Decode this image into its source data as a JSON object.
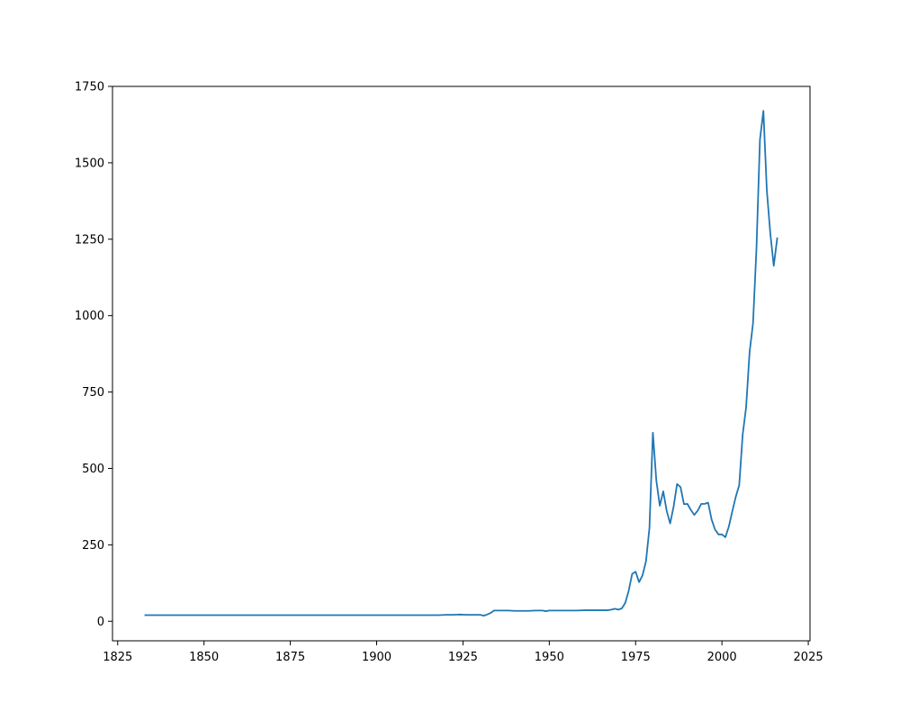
{
  "chart_data": {
    "type": "line",
    "title": "",
    "xlabel": "",
    "ylabel": "",
    "xlim": [
      1823.5,
      2025.5
    ],
    "ylim": [
      -64,
      1750
    ],
    "xticks": [
      1825,
      1850,
      1875,
      1900,
      1925,
      1950,
      1975,
      2000,
      2025
    ],
    "yticks": [
      0,
      250,
      500,
      750,
      1000,
      1250,
      1500,
      1750
    ],
    "grid": false,
    "legend": "none",
    "series": [
      {
        "color": "#1f77b4",
        "x": [
          1833,
          1850,
          1875,
          1900,
          1918,
          1920,
          1922,
          1924,
          1926,
          1928,
          1930,
          1931,
          1932,
          1933,
          1934,
          1936,
          1938,
          1940,
          1942,
          1944,
          1946,
          1948,
          1949,
          1950,
          1952,
          1954,
          1956,
          1958,
          1960,
          1962,
          1964,
          1966,
          1967,
          1968,
          1969,
          1970,
          1971,
          1972,
          1973,
          1974,
          1975,
          1976,
          1977,
          1978,
          1979,
          1980,
          1981,
          1982,
          1983,
          1984,
          1985,
          1986,
          1987,
          1988,
          1989,
          1990,
          1991,
          1992,
          1993,
          1994,
          1995,
          1996,
          1997,
          1998,
          1999,
          2000,
          2001,
          2002,
          2003,
          2004,
          2005,
          2006,
          2007,
          2008,
          2009,
          2010,
          2011,
          2012,
          2013,
          2014,
          2015,
          2016
        ],
        "y": [
          20,
          20,
          20,
          20,
          20,
          21,
          21,
          22,
          21,
          21,
          21,
          18,
          22,
          27,
          35,
          35,
          35,
          34,
          34,
          34,
          35,
          35,
          33,
          35,
          35,
          35,
          35,
          35,
          36,
          36,
          36,
          36,
          36,
          38,
          41,
          38,
          42,
          60,
          100,
          155,
          162,
          128,
          150,
          196,
          305,
          617,
          460,
          378,
          425,
          361,
          320,
          375,
          449,
          439,
          383,
          384,
          364,
          348,
          362,
          384,
          384,
          388,
          333,
          300,
          284,
          284,
          275,
          310,
          360,
          407,
          445,
          610,
          700,
          880,
          975,
          1220,
          1575,
          1670,
          1410,
          1270,
          1163,
          1253
        ]
      }
    ]
  }
}
